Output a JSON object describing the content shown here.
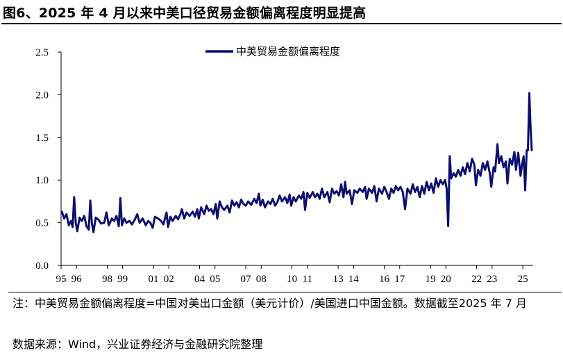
{
  "title": "图6、2025 年 4 月以来中美口径贸易金额偏离程度明显提高",
  "note": "注：中美贸易金额偏离程度=中国对美出口金额（美元计价）/美国进口中国金额。数据截至2025 年 7 月",
  "source": "数据来源：Wind，兴业证券经济与金融研究院整理",
  "colors": {
    "line": "#0c0f6e",
    "axis": "#000000",
    "text": "#000000"
  },
  "chart_data": {
    "type": "line",
    "title": "",
    "xlabel": "",
    "ylabel": "",
    "ylim": [
      0,
      2.5
    ],
    "yticks": [
      "0.0",
      "0.5",
      "1.0",
      "1.5",
      "2.0",
      "2.5"
    ],
    "xlim": [
      1995.0,
      2025.67
    ],
    "xticks": [
      {
        "label": "95",
        "x": 1995
      },
      {
        "label": "96",
        "x": 1996
      },
      {
        "label": "98",
        "x": 1998
      },
      {
        "label": "99",
        "x": 1999
      },
      {
        "label": "01",
        "x": 2001
      },
      {
        "label": "02",
        "x": 2002
      },
      {
        "label": "04",
        "x": 2004
      },
      {
        "label": "05",
        "x": 2005
      },
      {
        "label": "07",
        "x": 2007
      },
      {
        "label": "08",
        "x": 2008
      },
      {
        "label": "10",
        "x": 2010
      },
      {
        "label": "11",
        "x": 2011
      },
      {
        "label": "13",
        "x": 2013
      },
      {
        "label": "14",
        "x": 2014
      },
      {
        "label": "16",
        "x": 2016
      },
      {
        "label": "17",
        "x": 2017
      },
      {
        "label": "19",
        "x": 2019
      },
      {
        "label": "20",
        "x": 2020
      },
      {
        "label": "22",
        "x": 2022
      },
      {
        "label": "23",
        "x": 2023
      },
      {
        "label": "25",
        "x": 2025
      }
    ],
    "grid": false,
    "legend": "top-center",
    "series": [
      {
        "name": "中美贸易金额偏离程度",
        "points": [
          [
            1995.05,
            0.63
          ],
          [
            1995.2,
            0.55
          ],
          [
            1995.35,
            0.6
          ],
          [
            1995.5,
            0.47
          ],
          [
            1995.65,
            0.52
          ],
          [
            1995.75,
            0.45
          ],
          [
            1995.85,
            0.8
          ],
          [
            1995.95,
            0.5
          ],
          [
            1996.05,
            0.4
          ],
          [
            1996.2,
            0.56
          ],
          [
            1996.35,
            0.52
          ],
          [
            1996.5,
            0.58
          ],
          [
            1996.65,
            0.46
          ],
          [
            1996.8,
            0.42
          ],
          [
            1996.9,
            0.76
          ],
          [
            1997.0,
            0.5
          ],
          [
            1997.1,
            0.39
          ],
          [
            1997.25,
            0.56
          ],
          [
            1997.45,
            0.53
          ],
          [
            1997.6,
            0.49
          ],
          [
            1997.8,
            0.5
          ],
          [
            1997.95,
            0.62
          ],
          [
            1998.1,
            0.47
          ],
          [
            1998.3,
            0.55
          ],
          [
            1998.45,
            0.52
          ],
          [
            1998.6,
            0.58
          ],
          [
            1998.75,
            0.46
          ],
          [
            1998.85,
            0.79
          ],
          [
            1998.95,
            0.47
          ],
          [
            1999.1,
            0.55
          ],
          [
            1999.25,
            0.5
          ],
          [
            1999.45,
            0.52
          ],
          [
            1999.6,
            0.48
          ],
          [
            1999.8,
            0.54
          ],
          [
            1999.95,
            0.6
          ],
          [
            2000.1,
            0.5
          ],
          [
            2000.3,
            0.55
          ],
          [
            2000.5,
            0.47
          ],
          [
            2000.65,
            0.52
          ],
          [
            2000.8,
            0.5
          ],
          [
            2000.95,
            0.44
          ],
          [
            2001.1,
            0.57
          ],
          [
            2001.3,
            0.55
          ],
          [
            2001.5,
            0.52
          ],
          [
            2001.65,
            0.48
          ],
          [
            2001.85,
            0.62
          ],
          [
            2001.95,
            0.45
          ],
          [
            2002.1,
            0.57
          ],
          [
            2002.25,
            0.52
          ],
          [
            2002.45,
            0.58
          ],
          [
            2002.6,
            0.54
          ],
          [
            2002.75,
            0.6
          ],
          [
            2002.85,
            0.66
          ],
          [
            2003.0,
            0.55
          ],
          [
            2003.15,
            0.62
          ],
          [
            2003.35,
            0.58
          ],
          [
            2003.55,
            0.63
          ],
          [
            2003.7,
            0.57
          ],
          [
            2003.85,
            0.66
          ],
          [
            2003.95,
            0.55
          ],
          [
            2004.1,
            0.68
          ],
          [
            2004.3,
            0.6
          ],
          [
            2004.45,
            0.7
          ],
          [
            2004.6,
            0.64
          ],
          [
            2004.75,
            0.66
          ],
          [
            2004.9,
            0.6
          ],
          [
            2005.05,
            0.72
          ],
          [
            2005.15,
            0.55
          ],
          [
            2005.3,
            0.75
          ],
          [
            2005.45,
            0.68
          ],
          [
            2005.6,
            0.65
          ],
          [
            2005.8,
            0.7
          ],
          [
            2005.95,
            0.62
          ],
          [
            2006.1,
            0.76
          ],
          [
            2006.25,
            0.7
          ],
          [
            2006.4,
            0.74
          ],
          [
            2006.55,
            0.68
          ],
          [
            2006.7,
            0.77
          ],
          [
            2006.85,
            0.72
          ],
          [
            2007.0,
            0.7
          ],
          [
            2007.15,
            0.75
          ],
          [
            2007.35,
            0.71
          ],
          [
            2007.55,
            0.78
          ],
          [
            2007.7,
            0.73
          ],
          [
            2007.85,
            0.84
          ],
          [
            2007.95,
            0.7
          ],
          [
            2008.1,
            0.77
          ],
          [
            2008.25,
            0.68
          ],
          [
            2008.45,
            0.75
          ],
          [
            2008.6,
            0.72
          ],
          [
            2008.75,
            0.78
          ],
          [
            2008.9,
            0.7
          ],
          [
            2009.05,
            0.74
          ],
          [
            2009.2,
            0.82
          ],
          [
            2009.35,
            0.75
          ],
          [
            2009.55,
            0.8
          ],
          [
            2009.7,
            0.73
          ],
          [
            2009.85,
            0.83
          ],
          [
            2009.95,
            0.7
          ],
          [
            2010.1,
            0.8
          ],
          [
            2010.25,
            0.75
          ],
          [
            2010.45,
            0.82
          ],
          [
            2010.6,
            0.78
          ],
          [
            2010.75,
            0.86
          ],
          [
            2010.85,
            0.65
          ],
          [
            2011.0,
            0.85
          ],
          [
            2011.15,
            0.79
          ],
          [
            2011.35,
            0.86
          ],
          [
            2011.5,
            0.8
          ],
          [
            2011.65,
            0.84
          ],
          [
            2011.8,
            0.78
          ],
          [
            2011.95,
            0.9
          ],
          [
            2012.1,
            0.8
          ],
          [
            2012.3,
            0.86
          ],
          [
            2012.45,
            0.74
          ],
          [
            2012.6,
            0.9
          ],
          [
            2012.75,
            0.84
          ],
          [
            2012.9,
            0.87
          ],
          [
            2013.05,
            0.82
          ],
          [
            2013.2,
            0.95
          ],
          [
            2013.35,
            0.8
          ],
          [
            2013.45,
            0.98
          ],
          [
            2013.55,
            0.84
          ],
          [
            2013.75,
            0.88
          ],
          [
            2013.9,
            0.72
          ],
          [
            2014.05,
            0.88
          ],
          [
            2014.25,
            0.85
          ],
          [
            2014.4,
            0.9
          ],
          [
            2014.6,
            0.86
          ],
          [
            2014.75,
            0.92
          ],
          [
            2014.85,
            0.78
          ],
          [
            2015.0,
            0.9
          ],
          [
            2015.2,
            0.85
          ],
          [
            2015.35,
            0.93
          ],
          [
            2015.5,
            0.75
          ],
          [
            2015.65,
            0.9
          ],
          [
            2015.85,
            0.84
          ],
          [
            2016.0,
            0.92
          ],
          [
            2016.15,
            0.86
          ],
          [
            2016.3,
            0.78
          ],
          [
            2016.45,
            0.9
          ],
          [
            2016.6,
            0.85
          ],
          [
            2016.75,
            0.93
          ],
          [
            2016.9,
            0.88
          ],
          [
            2017.05,
            0.92
          ],
          [
            2017.2,
            0.86
          ],
          [
            2017.35,
            0.66
          ],
          [
            2017.5,
            0.9
          ],
          [
            2017.7,
            0.84
          ],
          [
            2017.85,
            0.95
          ],
          [
            2018.0,
            0.86
          ],
          [
            2018.15,
            0.92
          ],
          [
            2018.3,
            0.8
          ],
          [
            2018.45,
            0.93
          ],
          [
            2018.6,
            0.84
          ],
          [
            2018.75,
            0.98
          ],
          [
            2018.9,
            0.88
          ],
          [
            2019.05,
            0.96
          ],
          [
            2019.2,
            0.85
          ],
          [
            2019.35,
            1.02
          ],
          [
            2019.5,
            0.92
          ],
          [
            2019.65,
            1.0
          ],
          [
            2019.8,
            0.95
          ],
          [
            2019.95,
            1.0
          ],
          [
            2020.05,
            0.9
          ],
          [
            2020.15,
            0.46
          ],
          [
            2020.25,
            1.28
          ],
          [
            2020.35,
            1.02
          ],
          [
            2020.5,
            1.08
          ],
          [
            2020.65,
            1.04
          ],
          [
            2020.8,
            1.12
          ],
          [
            2020.95,
            1.05
          ],
          [
            2021.1,
            1.15
          ],
          [
            2021.25,
            1.07
          ],
          [
            2021.4,
            1.2
          ],
          [
            2021.55,
            1.1
          ],
          [
            2021.7,
            1.25
          ],
          [
            2021.85,
            1.18
          ],
          [
            2021.95,
            0.94
          ],
          [
            2022.1,
            1.12
          ],
          [
            2022.25,
            1.05
          ],
          [
            2022.4,
            1.2
          ],
          [
            2022.55,
            1.12
          ],
          [
            2022.7,
            1.22
          ],
          [
            2022.85,
            1.08
          ],
          [
            2022.95,
            0.92
          ],
          [
            2023.1,
            1.15
          ],
          [
            2023.2,
            1.1
          ],
          [
            2023.35,
            1.42
          ],
          [
            2023.45,
            1.2
          ],
          [
            2023.6,
            1.28
          ],
          [
            2023.75,
            1.15
          ],
          [
            2023.9,
            1.22
          ],
          [
            2024.0,
            0.96
          ],
          [
            2024.15,
            1.25
          ],
          [
            2024.3,
            1.18
          ],
          [
            2024.45,
            1.33
          ],
          [
            2024.55,
            1.12
          ],
          [
            2024.7,
            1.32
          ],
          [
            2024.85,
            1.05
          ],
          [
            2024.95,
            1.18
          ],
          [
            2025.05,
            1.28
          ],
          [
            2025.15,
            0.88
          ],
          [
            2025.25,
            1.35
          ],
          [
            2025.33,
            1.35
          ],
          [
            2025.42,
            2.02
          ],
          [
            2025.5,
            1.63
          ],
          [
            2025.58,
            1.35
          ]
        ]
      }
    ]
  }
}
